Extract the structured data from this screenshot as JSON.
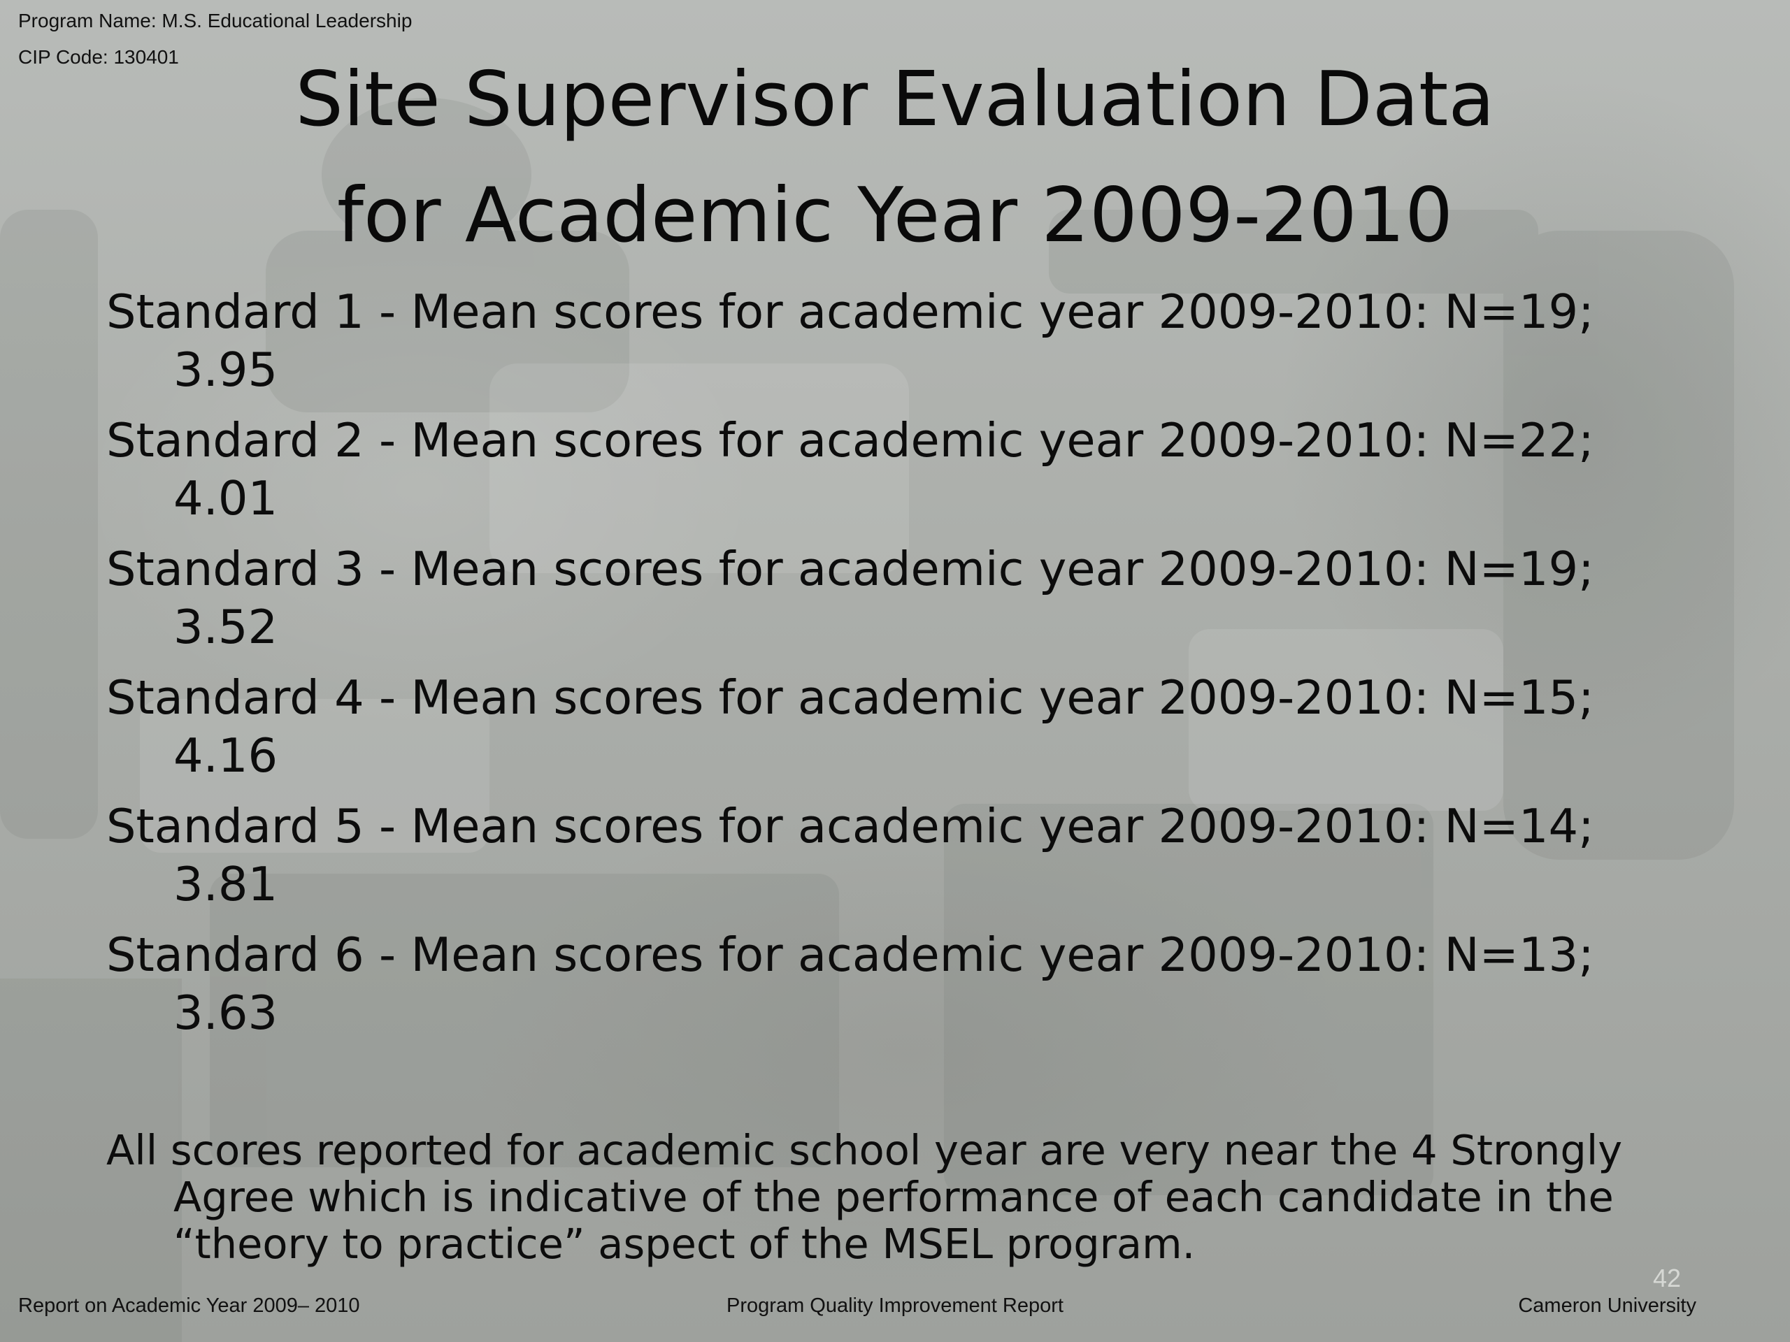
{
  "header": {
    "program_name": "Program Name: M.S. Educational Leadership",
    "cip_code": "CIP Code: 130401"
  },
  "title": {
    "line1": "Site Supervisor Evaluation Data",
    "line2": "for Academic Year 2009-2010"
  },
  "standards": [
    {
      "label": "Standard 1 -  Mean scores for academic year 2009-2010: N=19;",
      "score": "3.95"
    },
    {
      "label": "Standard 2 - Mean scores for academic year 2009-2010: N=22;",
      "score": "4.01"
    },
    {
      "label": "Standard 3 - Mean scores for academic year 2009-2010: N=19;",
      "score": "3.52"
    },
    {
      "label": "Standard 4 - Mean scores for academic year 2009-2010: N=15;",
      "score": "4.16"
    },
    {
      "label": "Standard 5 - Mean scores for academic year 2009-2010: N=14;",
      "score": "3.81"
    },
    {
      "label": "Standard 6 - Mean scores for academic year 2009-2010: N=13;",
      "score": "3.63"
    }
  ],
  "summary": "All scores reported for academic  school year are very near the 4 Strongly Agree which is indicative of the performance of each candidate in the “theory to practice” aspect of the MSEL program.",
  "footer": {
    "left": "Report on Academic Year 2009– 2010",
    "center": "Program Quality Improvement Report",
    "right": "Cameron University",
    "page_number": "42"
  }
}
